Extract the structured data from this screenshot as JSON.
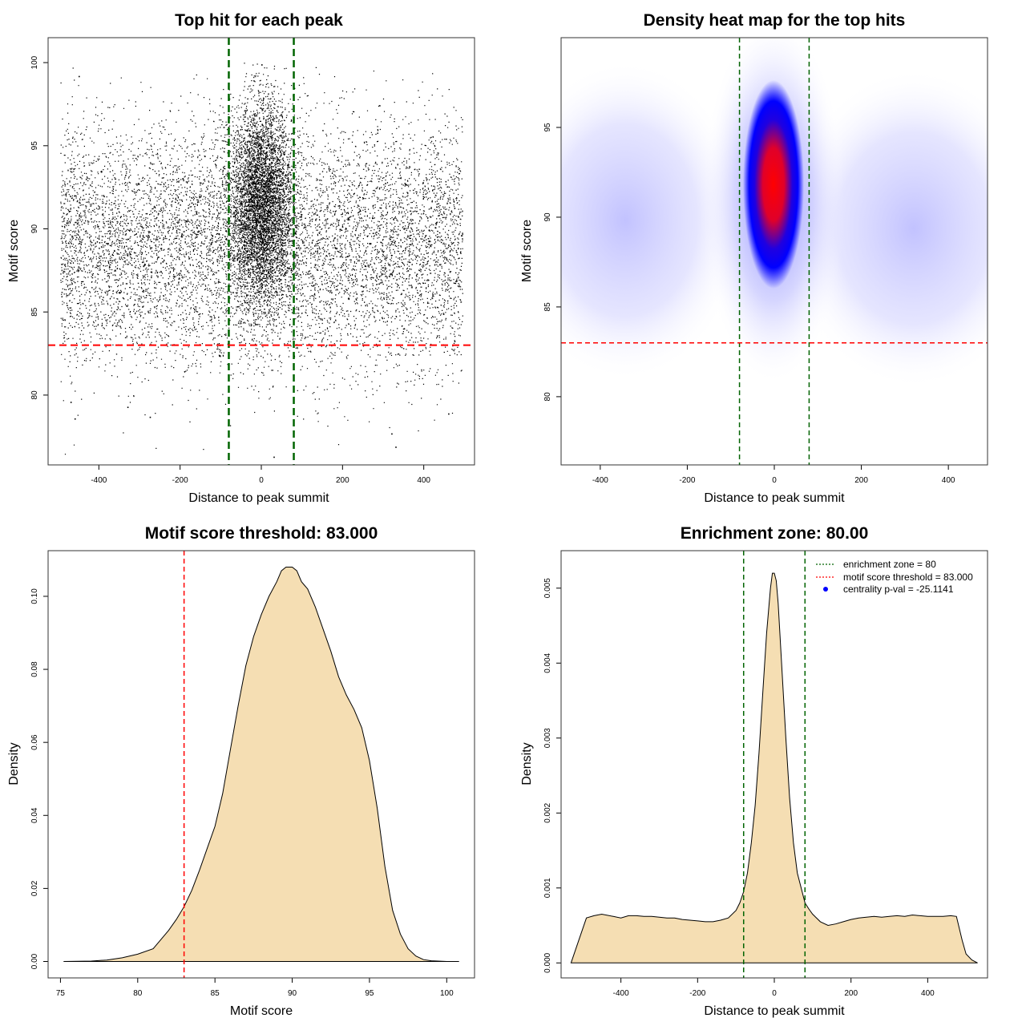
{
  "chart_data": [
    {
      "type": "scatter",
      "title": "Top hit for each peak",
      "xlabel": "Distance to peak summit",
      "ylabel": "Motif score",
      "xlim": [
        -525,
        525
      ],
      "ylim": [
        75.8,
        101.5
      ],
      "xticks": [
        -400,
        -200,
        0,
        200,
        400
      ],
      "yticks": [
        80,
        85,
        90,
        95,
        100
      ],
      "threshold_y": 83,
      "enrichment_x": [
        -80,
        80
      ],
      "colors": {
        "points": "#000000",
        "enrichment_line": "#006400",
        "threshold_line": "#ff0000"
      },
      "description_points": [
        {
          "x": -470,
          "y": 79.6
        },
        {
          "x": -460,
          "y": 78.6
        },
        {
          "x": -330,
          "y": 79.3
        },
        {
          "x": -275,
          "y": 78.7
        },
        {
          "x": 30,
          "y": 76.3
        },
        {
          "x": 320,
          "y": 77.7
        },
        {
          "x": 330,
          "y": 76.9
        },
        {
          "x": 460,
          "y": 78.9
        },
        {
          "x": -450,
          "y": 99.2
        },
        {
          "x": 0,
          "y": 99.9
        }
      ]
    },
    {
      "type": "heatmap",
      "title": "Density heat map for the top hits",
      "xlabel": "Distance to peak summit",
      "ylabel": "Motif score",
      "xlim": [
        -490,
        490
      ],
      "ylim": [
        76.2,
        100
      ],
      "xticks": [
        -400,
        -200,
        0,
        200,
        400
      ],
      "yticks": [
        80,
        85,
        90,
        95
      ],
      "threshold_y": 83,
      "enrichment_x": [
        -80,
        80
      ],
      "colors": {
        "low": "#ffffff",
        "mid": "#0000ff",
        "high": "#ff0000",
        "enrichment_line": "#006400",
        "threshold_line": "#ff0000"
      }
    },
    {
      "type": "area",
      "title": "Motif score threshold: 83.000",
      "xlabel": "Motif score",
      "ylabel": "Density",
      "xlim": [
        74.2,
        101.8
      ],
      "ylim": [
        -0.0045,
        0.1125
      ],
      "xticks": [
        75,
        80,
        85,
        90,
        95,
        100
      ],
      "yticks": [
        0.0,
        0.02,
        0.04,
        0.06,
        0.08,
        0.1
      ],
      "ytick_labels": [
        "0.00",
        "0.02",
        "0.04",
        "0.06",
        "0.08",
        "0.10"
      ],
      "threshold_x": 83,
      "fill": "#f5deb3",
      "x": [
        75.2,
        77,
        78,
        79,
        80,
        81,
        81.5,
        82,
        82.5,
        83,
        83.5,
        84,
        84.5,
        85,
        85.5,
        86,
        86.5,
        87,
        87.5,
        88,
        88.5,
        89,
        89.3,
        89.6,
        90,
        90.3,
        90.6,
        91,
        91.5,
        92,
        92.5,
        93,
        93.5,
        94,
        94.5,
        95,
        95.5,
        96,
        96.5,
        97,
        97.5,
        98,
        98.5,
        99,
        100,
        100.8
      ],
      "y": [
        0.0,
        0.0001,
        0.0004,
        0.001,
        0.002,
        0.0035,
        0.006,
        0.0085,
        0.0115,
        0.015,
        0.0195,
        0.025,
        0.031,
        0.037,
        0.046,
        0.058,
        0.07,
        0.081,
        0.089,
        0.095,
        0.1,
        0.104,
        0.107,
        0.108,
        0.108,
        0.107,
        0.104,
        0.102,
        0.097,
        0.091,
        0.085,
        0.078,
        0.073,
        0.069,
        0.064,
        0.055,
        0.042,
        0.026,
        0.014,
        0.0075,
        0.0035,
        0.0015,
        0.0005,
        0.0002,
        0.0,
        0.0
      ]
    },
    {
      "type": "area",
      "title": "Enrichment zone: 80.00",
      "xlabel": "Distance to peak summit",
      "ylabel": "Density",
      "xlim": [
        -556,
        556
      ],
      "ylim": [
        -0.0002,
        0.0055
      ],
      "xticks": [
        -400,
        -200,
        0,
        200,
        400
      ],
      "yticks": [
        0.0,
        0.001,
        0.002,
        0.003,
        0.004,
        0.005
      ],
      "ytick_labels": [
        "0.000",
        "0.001",
        "0.002",
        "0.003",
        "0.004",
        "0.005"
      ],
      "enrichment_x": [
        -80,
        80
      ],
      "fill": "#f5deb3",
      "x": [
        -530,
        -510,
        -490,
        -470,
        -450,
        -420,
        -400,
        -380,
        -360,
        -340,
        -320,
        -300,
        -280,
        -260,
        -240,
        -220,
        -200,
        -180,
        -160,
        -140,
        -120,
        -100,
        -90,
        -80,
        -70,
        -60,
        -50,
        -40,
        -30,
        -20,
        -10,
        -5,
        0,
        5,
        10,
        20,
        30,
        40,
        50,
        60,
        70,
        80,
        90,
        100,
        120,
        140,
        160,
        180,
        200,
        220,
        240,
        260,
        280,
        300,
        320,
        340,
        360,
        380,
        400,
        420,
        440,
        460,
        475,
        490,
        500,
        515,
        530
      ],
      "y": [
        0.0,
        0.0003,
        0.0006,
        0.00063,
        0.00065,
        0.00062,
        0.0006,
        0.00063,
        0.00063,
        0.00062,
        0.00062,
        0.00061,
        0.0006,
        0.0006,
        0.00058,
        0.00057,
        0.00056,
        0.00055,
        0.00055,
        0.00057,
        0.0006,
        0.0007,
        0.0008,
        0.00095,
        0.0012,
        0.0016,
        0.0021,
        0.0028,
        0.0036,
        0.0044,
        0.005,
        0.0052,
        0.0052,
        0.0051,
        0.0048,
        0.0039,
        0.003,
        0.0022,
        0.0016,
        0.0012,
        0.001,
        0.0008,
        0.00072,
        0.00065,
        0.00055,
        0.0005,
        0.00052,
        0.00055,
        0.00058,
        0.0006,
        0.00061,
        0.00062,
        0.00061,
        0.00062,
        0.00063,
        0.00062,
        0.00064,
        0.00063,
        0.00062,
        0.00062,
        0.00062,
        0.00063,
        0.00062,
        0.0003,
        0.00012,
        4e-05,
        0.0
      ],
      "legend": [
        {
          "label": "enrichment zone = 80",
          "style": "dotted-line",
          "color": "#006400"
        },
        {
          "label": "motif score threshold = 83.000",
          "style": "dotted-line",
          "color": "#ff0000"
        },
        {
          "label": "centrality p-val = -25.1141",
          "style": "point",
          "color": "#0000ff"
        }
      ],
      "legend_position": "top-right"
    }
  ]
}
